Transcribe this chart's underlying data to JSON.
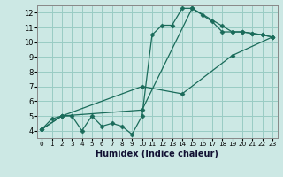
{
  "xlabel": "Humidex (Indice chaleur)",
  "bg_color": "#cce8e4",
  "grid_color": "#99ccc4",
  "line_color": "#1a6b5a",
  "xlim": [
    -0.5,
    23.5
  ],
  "ylim": [
    3.5,
    12.5
  ],
  "xticks": [
    0,
    1,
    2,
    3,
    4,
    5,
    6,
    7,
    8,
    9,
    10,
    11,
    12,
    13,
    14,
    15,
    16,
    17,
    18,
    19,
    20,
    21,
    22,
    23
  ],
  "yticks": [
    4,
    5,
    6,
    7,
    8,
    9,
    10,
    11,
    12
  ],
  "series1_x": [
    0,
    1,
    2,
    3,
    4,
    5,
    6,
    7,
    8,
    9,
    10,
    11,
    12,
    13,
    14,
    15,
    16,
    17,
    18,
    19,
    20,
    21,
    22,
    23
  ],
  "series1_y": [
    4.1,
    4.8,
    5.0,
    5.0,
    4.0,
    5.0,
    4.3,
    4.5,
    4.3,
    3.75,
    5.0,
    10.5,
    11.15,
    11.15,
    12.3,
    12.3,
    11.85,
    11.4,
    10.7,
    10.7,
    10.7,
    10.6,
    10.5,
    10.35
  ],
  "series2_x": [
    0,
    2,
    10,
    15,
    18,
    19,
    20,
    21,
    22,
    23
  ],
  "series2_y": [
    4.1,
    5.0,
    5.4,
    12.3,
    11.1,
    10.7,
    10.7,
    10.6,
    10.5,
    10.35
  ],
  "series3_x": [
    0,
    2,
    10,
    14,
    19,
    23
  ],
  "series3_y": [
    4.1,
    5.0,
    7.0,
    6.5,
    9.1,
    10.35
  ]
}
